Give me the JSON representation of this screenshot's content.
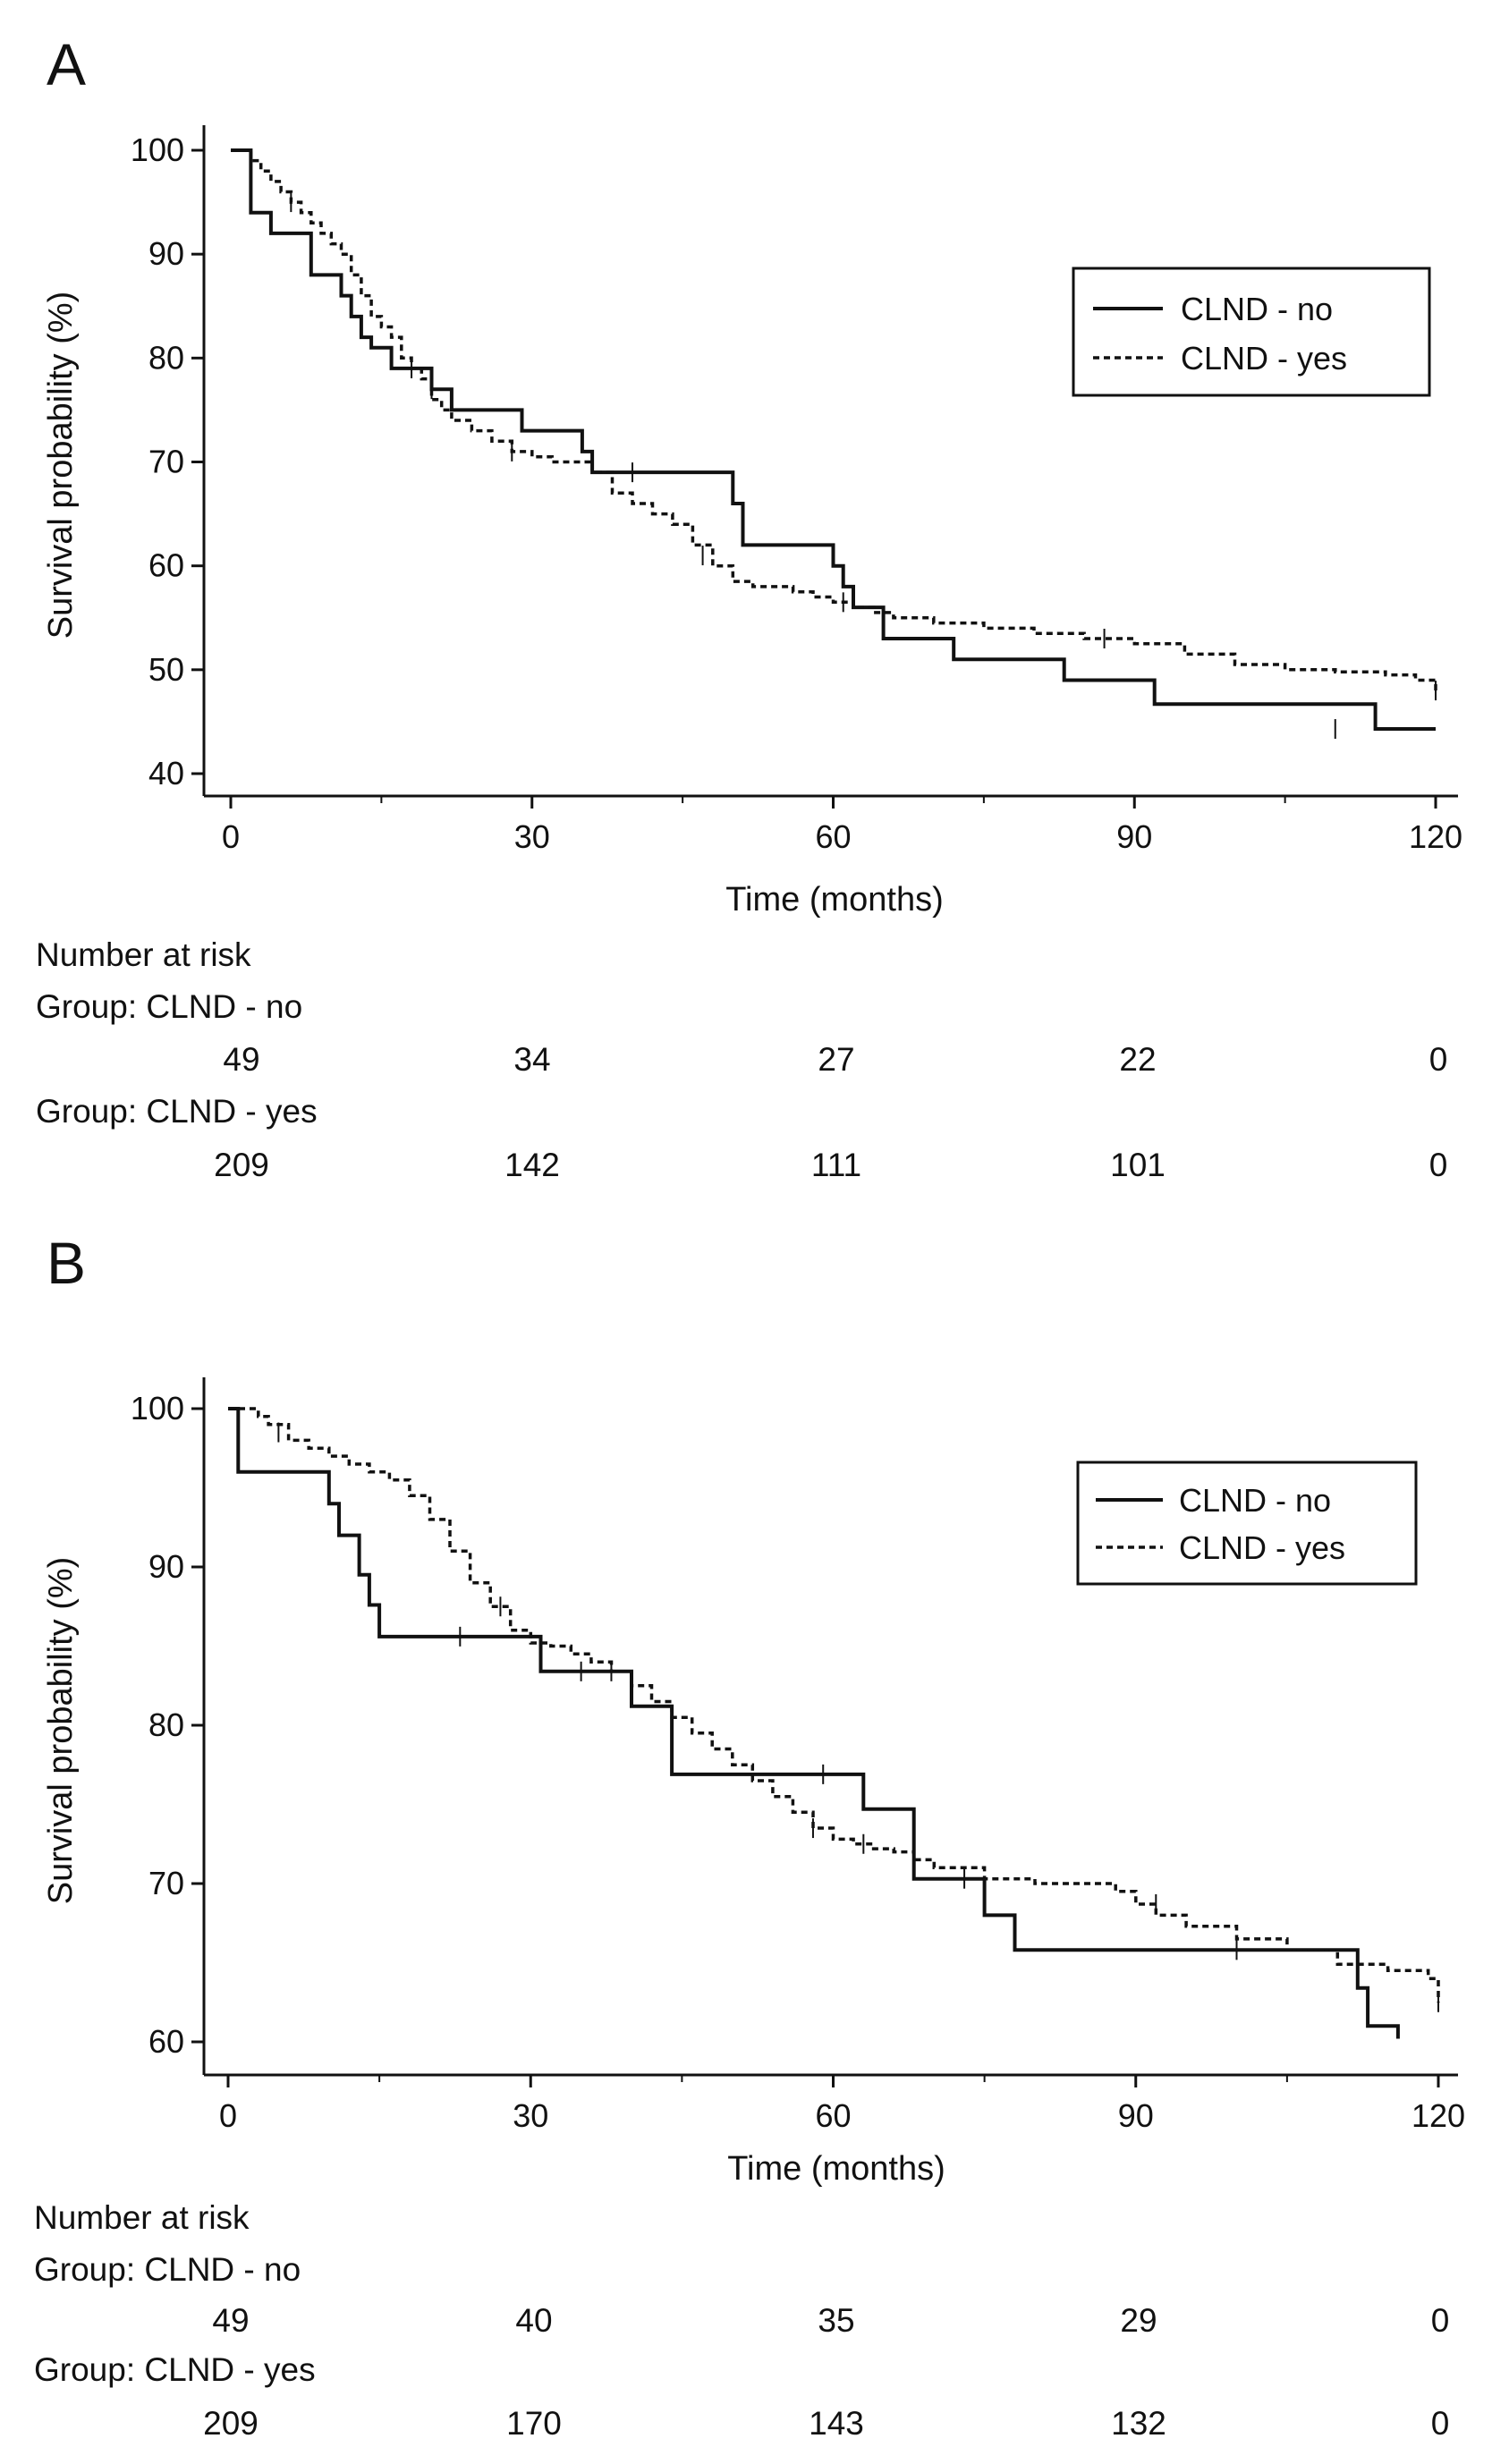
{
  "chart_data": [
    {
      "panel": "A",
      "type": "line",
      "subtype": "kaplan-meier",
      "xlabel": "Time (months)",
      "ylabel": "Survival probability (%)",
      "xlim": [
        0,
        120
      ],
      "ylim": [
        40,
        100
      ],
      "xticks": [
        0,
        30,
        60,
        90,
        120
      ],
      "yticks": [
        40,
        50,
        60,
        70,
        80,
        90,
        100
      ],
      "legend": {
        "position": "top-right",
        "entries": [
          "CLND - no",
          "CLND - yes"
        ]
      },
      "series": [
        {
          "name": "CLND - no",
          "style": "solid",
          "x": [
            0,
            2,
            2,
            4,
            4,
            8,
            8,
            11,
            11,
            12,
            12,
            13,
            13,
            14,
            14,
            16,
            16,
            20,
            20,
            22,
            22,
            29,
            29,
            35,
            35,
            36,
            36,
            50,
            50,
            51,
            51,
            60,
            60,
            61,
            61,
            62,
            62,
            65,
            65,
            72,
            72,
            83,
            83,
            92,
            92,
            114,
            114,
            120
          ],
          "y": [
            100,
            100,
            94,
            94,
            92,
            92,
            88,
            88,
            86,
            86,
            84,
            84,
            82,
            82,
            81,
            81,
            79,
            79,
            77,
            77,
            75,
            75,
            73,
            73,
            71,
            71,
            69,
            69,
            66,
            66,
            62,
            62,
            60,
            60,
            58,
            58,
            56,
            56,
            53,
            53,
            51,
            51,
            49,
            49,
            46.7,
            46.7,
            44.3,
            44.3
          ],
          "censor_x": [
            20,
            40,
            110
          ],
          "censor_y": [
            77,
            69,
            44.3
          ]
        },
        {
          "name": "CLND - yes",
          "style": "dashed",
          "x": [
            0,
            2,
            3,
            4,
            5,
            6,
            7,
            8,
            9,
            10,
            11,
            12,
            13,
            14,
            15,
            16,
            17,
            18,
            19,
            20,
            21,
            22,
            24,
            26,
            28,
            30,
            32,
            34,
            36,
            38,
            40,
            42,
            44,
            46,
            48,
            50,
            52,
            54,
            56,
            58,
            60,
            62,
            64,
            66,
            70,
            75,
            80,
            85,
            90,
            95,
            100,
            105,
            110,
            115,
            118,
            120
          ],
          "y": [
            100,
            99,
            98,
            97,
            96,
            95,
            94,
            93,
            92,
            91,
            90,
            88,
            86,
            84,
            83,
            82,
            80,
            79,
            78,
            76,
            75,
            74,
            73,
            72,
            71,
            70.5,
            70,
            70,
            69,
            67,
            66,
            65,
            64,
            62,
            60,
            58.5,
            58,
            58,
            57.5,
            57,
            56.5,
            56,
            55.5,
            55,
            54.5,
            54,
            53.5,
            53,
            52.5,
            51.5,
            50.5,
            50,
            49.8,
            49.5,
            49,
            48
          ],
          "censor_x": [
            6,
            18,
            28,
            47,
            61,
            87,
            120
          ],
          "censor_y": [
            95,
            79,
            71,
            61,
            56.5,
            53,
            48
          ]
        }
      ],
      "risk_table": {
        "title": "Number at risk",
        "groups": [
          {
            "label": "Group: CLND - no",
            "counts": [
              "49",
              "34",
              "27",
              "22",
              "0"
            ]
          },
          {
            "label": "Group: CLND - yes",
            "counts": [
              "209",
              "142",
              "111",
              "101",
              "0"
            ]
          }
        ]
      }
    },
    {
      "panel": "B",
      "type": "line",
      "subtype": "kaplan-meier",
      "xlabel": "Time (months)",
      "ylabel": "Survival probability (%)",
      "xlim": [
        0,
        120
      ],
      "ylim": [
        60,
        100
      ],
      "xticks": [
        0,
        30,
        60,
        90,
        120
      ],
      "yticks": [
        60,
        70,
        80,
        90,
        100
      ],
      "legend": {
        "position": "top-right",
        "entries": [
          "CLND - no",
          "CLND - yes"
        ]
      },
      "series": [
        {
          "name": "CLND - no",
          "style": "solid",
          "x": [
            0,
            1,
            1,
            10,
            10,
            11,
            11,
            13,
            13,
            14,
            14,
            15,
            15,
            19,
            19,
            31,
            31,
            40,
            40,
            44,
            44,
            63,
            63,
            68,
            68,
            75,
            75,
            78,
            78,
            112,
            112,
            113,
            113,
            116,
            116
          ],
          "y": [
            100,
            100,
            96,
            96,
            94,
            94,
            92,
            92,
            89.5,
            89.5,
            87.6,
            87.6,
            85.6,
            85.6,
            85.6,
            85.6,
            83.4,
            83.4,
            81.2,
            81.2,
            76.9,
            76.9,
            74.7,
            74.7,
            70.3,
            70.3,
            68.0,
            68.0,
            65.8,
            65.8,
            63.4,
            63.4,
            61.0,
            61.0,
            60.2
          ],
          "censor_x": [
            23,
            35,
            59,
            100
          ],
          "censor_y": [
            85.6,
            83.4,
            76.9,
            65.8
          ]
        },
        {
          "name": "CLND - yes",
          "style": "dashed",
          "x": [
            0,
            2,
            3,
            4,
            6,
            8,
            10,
            12,
            14,
            16,
            18,
            20,
            22,
            24,
            26,
            28,
            30,
            32,
            34,
            36,
            38,
            40,
            42,
            44,
            46,
            48,
            50,
            52,
            54,
            56,
            58,
            60,
            62,
            64,
            66,
            68,
            70,
            75,
            80,
            85,
            88,
            90,
            92,
            95,
            100,
            105,
            110,
            115,
            119,
            120
          ],
          "y": [
            100,
            100,
            99.5,
            99,
            98,
            97.5,
            97,
            96.5,
            96,
            95.5,
            94.5,
            93,
            91,
            89,
            87.5,
            86,
            85.2,
            85,
            84.5,
            84,
            83.4,
            82.5,
            81.5,
            80.5,
            79.5,
            78.5,
            77.5,
            76.5,
            75.5,
            74.5,
            73.5,
            72.8,
            72.5,
            72.2,
            72,
            71.5,
            71,
            70.3,
            70,
            70,
            69.5,
            68.7,
            68,
            67.3,
            66.5,
            65.8,
            64.9,
            64.5,
            64,
            62.5
          ],
          "censor_x": [
            5,
            27,
            38,
            58,
            63,
            73,
            92,
            112,
            120
          ],
          "censor_y": [
            98.5,
            87.5,
            83.4,
            73.5,
            72.5,
            70.3,
            68.7,
            65.2,
            62.5
          ]
        }
      ],
      "risk_table": {
        "title": "Number at risk",
        "groups": [
          {
            "label": "Group: CLND - no",
            "counts": [
              "49",
              "40",
              "35",
              "29",
              "0"
            ]
          },
          {
            "label": "Group: CLND - yes",
            "counts": [
              "209",
              "170",
              "143",
              "132",
              "0"
            ]
          }
        ]
      }
    }
  ],
  "panels": {
    "a": {
      "letter": "A"
    },
    "b": {
      "letter": "B"
    }
  }
}
